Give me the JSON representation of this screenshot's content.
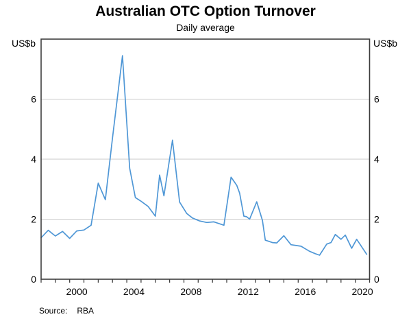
{
  "title": "Australian OTC Option Turnover",
  "subtitle": "Daily average",
  "left_axis_unit": "US$b",
  "right_axis_unit": "US$b",
  "source_label": "Source:",
  "source_value": "RBA",
  "colors": {
    "line": "#4f97d6",
    "gridline": "#c9c9c9",
    "axis": "#3d3d3d",
    "text": "#000000"
  },
  "chart_data": {
    "type": "line",
    "title": "Australian OTC Option Turnover",
    "subtitle": "Daily average",
    "ylabel_left": "US$b",
    "ylabel_right": "US$b",
    "source": "RBA",
    "x_range": [
      1998,
      2021
    ],
    "y_range": [
      0,
      8
    ],
    "y_gridlines": [
      2,
      4,
      6
    ],
    "y_tick_labels": [
      "0",
      "2",
      "4",
      "6"
    ],
    "y_tick_values": [
      0,
      2,
      4,
      6
    ],
    "x_tick_interval": 1,
    "x_tick_labels": [
      "2000",
      "2004",
      "2008",
      "2012",
      "2016",
      "2020"
    ],
    "x_tick_label_years": [
      2000,
      2004,
      2008,
      2012,
      2016,
      2020
    ],
    "grid": "horizontal-only",
    "legend": "none",
    "series": [
      {
        "x": [
          1998.0,
          1998.5,
          1999.0,
          1999.5,
          2000.0,
          2000.5,
          2001.0,
          2001.5,
          2002.0,
          2002.5,
          2003.0,
          2003.7,
          2004.2,
          2004.6,
          2005.0,
          2005.5,
          2006.0,
          2006.3,
          2006.6,
          2007.2,
          2007.7,
          2008.2,
          2008.6,
          2009.1,
          2009.6,
          2010.1,
          2010.8,
          2011.3,
          2011.7,
          2011.9,
          2012.2,
          2012.4,
          2012.6,
          2013.1,
          2013.5,
          2013.7,
          2014.2,
          2014.5,
          2015.0,
          2015.5,
          2015.9,
          2016.2,
          2016.8,
          2017.2,
          2017.5,
          2018.0,
          2018.3,
          2018.6,
          2019.0,
          2019.3,
          2019.75,
          2020.1,
          2020.8
        ],
        "y": [
          1.38,
          1.63,
          1.44,
          1.59,
          1.36,
          1.61,
          1.64,
          1.8,
          3.2,
          2.65,
          4.7,
          7.45,
          3.7,
          2.72,
          2.6,
          2.42,
          2.1,
          3.47,
          2.78,
          4.63,
          2.57,
          2.19,
          2.04,
          1.94,
          1.89,
          1.91,
          1.8,
          3.4,
          3.13,
          2.87,
          2.1,
          2.08,
          2.0,
          2.58,
          1.96,
          1.3,
          1.22,
          1.21,
          1.45,
          1.15,
          1.12,
          1.1,
          0.93,
          0.85,
          0.8,
          1.17,
          1.22,
          1.49,
          1.33,
          1.47,
          1.03,
          1.33,
          0.83
        ]
      }
    ]
  }
}
